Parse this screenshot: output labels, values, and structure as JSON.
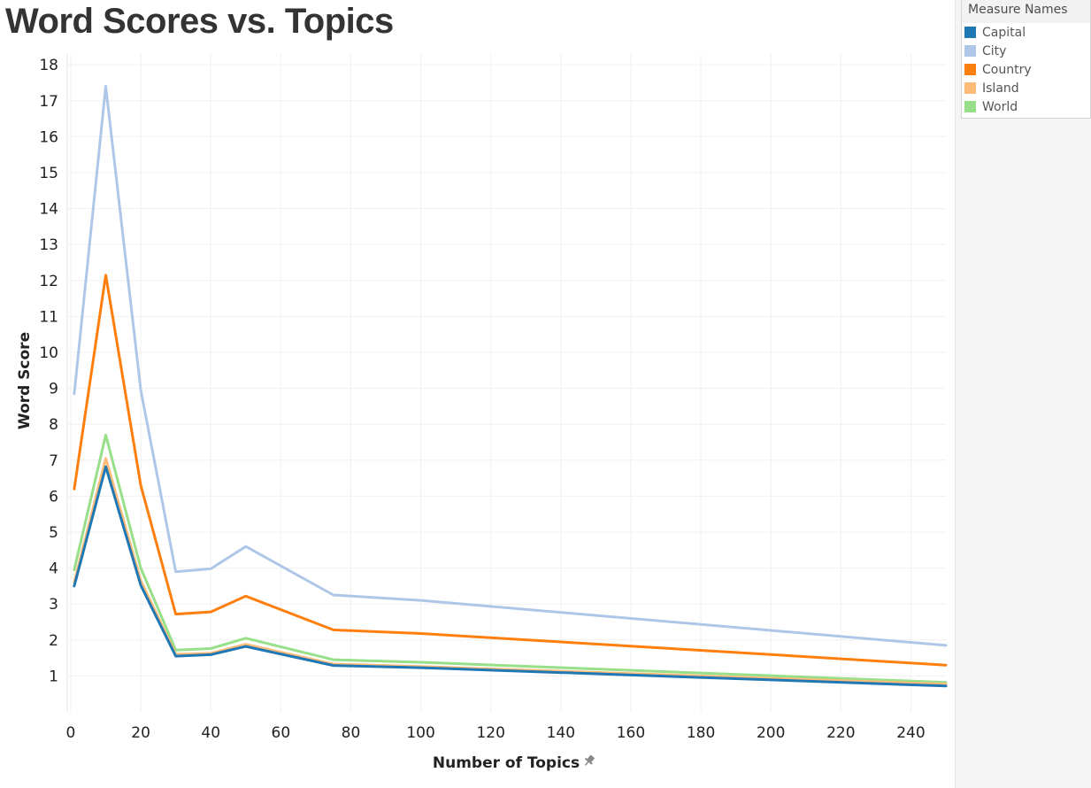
{
  "chart_data": {
    "type": "line",
    "title": "Word Scores vs. Topics",
    "xlabel": "Number of Topics",
    "ylabel": "Word Score",
    "x": [
      1,
      10,
      20,
      30,
      40,
      50,
      75,
      100,
      250
    ],
    "xlim": [
      -1,
      250
    ],
    "ylim": [
      0,
      18.3
    ],
    "xticks": [
      0,
      20,
      40,
      60,
      80,
      100,
      120,
      140,
      160,
      180,
      200,
      220,
      240
    ],
    "yticks": [
      1,
      2,
      3,
      4,
      5,
      6,
      7,
      8,
      9,
      10,
      11,
      12,
      13,
      14,
      15,
      16,
      17,
      18
    ],
    "grid": true,
    "legend": {
      "title": "Measure Names",
      "placement": "top-right"
    },
    "series": [
      {
        "name": "City",
        "color": "#aec7e8",
        "values": [
          8.85,
          17.4,
          8.95,
          3.9,
          3.98,
          4.6,
          3.25,
          3.1,
          1.85
        ]
      },
      {
        "name": "Country",
        "color": "#ff7f0e",
        "values": [
          6.2,
          12.15,
          6.3,
          2.72,
          2.78,
          3.22,
          2.28,
          2.18,
          1.3
        ]
      },
      {
        "name": "World",
        "color": "#98df8a",
        "values": [
          3.95,
          7.7,
          4.0,
          1.72,
          1.76,
          2.05,
          1.45,
          1.38,
          0.82
        ]
      },
      {
        "name": "Island",
        "color": "#ffbb78",
        "values": [
          3.6,
          7.05,
          3.65,
          1.6,
          1.63,
          1.88,
          1.33,
          1.26,
          0.77
        ]
      },
      {
        "name": "Capital",
        "color": "#1f77b4",
        "values": [
          3.5,
          6.82,
          3.52,
          1.55,
          1.59,
          1.82,
          1.29,
          1.23,
          0.72
        ]
      }
    ]
  },
  "legend_items": [
    {
      "name": "Capital",
      "color": "#1f77b4"
    },
    {
      "name": "City",
      "color": "#aec7e8"
    },
    {
      "name": "Country",
      "color": "#ff7f0e"
    },
    {
      "name": "Island",
      "color": "#ffbb78"
    },
    {
      "name": "World",
      "color": "#98df8a"
    }
  ],
  "icons": {
    "x_axis_pin": "pin-icon"
  }
}
